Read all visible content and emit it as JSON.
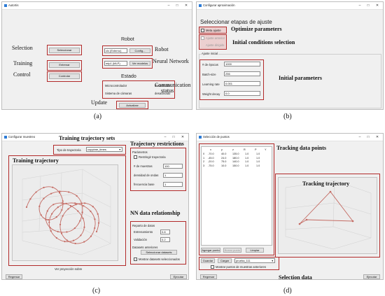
{
  "panel_a": {
    "title": "AutoXis",
    "robot_header": "Robot",
    "estado_header": "Estado",
    "seleccionar": "Seleccionar",
    "entrenar": "Entrenar",
    "controlar": "Controlar",
    "robot_value": "clx (Externo)",
    "config": "Config...",
    "model_value": "mlp1 (MLP)",
    "ver_modelos": "Ver modelos",
    "status_rows": [
      {
        "label": "Microcontrolador",
        "value": "desactivado"
      },
      {
        "label": "Sistema de cámaras",
        "value": "desactivado"
      }
    ],
    "actualizar": "Actualizar",
    "ann": {
      "selection": "Selection",
      "training": "Training",
      "control": "Control",
      "robot": "Robot",
      "neural": "Neural Network",
      "comm1": "Communication",
      "comm2": "status",
      "update": "Update"
    },
    "caption": "(a)"
  },
  "panel_b": {
    "title": "Configurar aproximación",
    "header": "Seleccionar etapas de ajuste",
    "check1": "Meta ajuste",
    "check2": "Ajuste anterior",
    "check3": "Ajuste dirigido",
    "group_title": "Ajuste inicial",
    "params": [
      {
        "label": "# de épocas",
        "value": "1000"
      },
      {
        "label": "Batch-size",
        "value": "256"
      },
      {
        "label": "Learning rate",
        "value": "0.001"
      },
      {
        "label": "Weight decay",
        "value": "0.0"
      }
    ],
    "ann": {
      "opt": "Optimize parameters",
      "init": "Initial conditions selection",
      "params": "Initial parameters"
    },
    "caption": "(b)"
  },
  "panel_c": {
    "title": "Configurar muestreo",
    "tipo_label": "Tipo de trayectoria",
    "tipo_value": "coppime_times",
    "parametros": "Parámetros",
    "restringir": "Restringir trayectoria",
    "fields": [
      {
        "label": "# de muestras",
        "value": "100"
      },
      {
        "label": "densidad de ondas",
        "value": "1"
      },
      {
        "label": "frecuencia base",
        "value": "1"
      }
    ],
    "reparto": "Reparto de datos",
    "entrenamiento": "Entrenamiento",
    "entrenamiento_val": "0.8",
    "validacion": "Validación",
    "validacion_val": "0.2",
    "datasets": "Datasets anteriores",
    "sel_datasets": "Seleccionar datasets",
    "mostrar": "Mostrar datasets seleccionados",
    "ver_proyeccion": "Ver proyección sobre",
    "regresar": "Regresar",
    "ejecutar": "Ejecutar",
    "ann": {
      "sets": "Training trajectory sets",
      "traj": "Training trajectory",
      "restr": "Trajectory restrictions",
      "nn": "NN data relationship"
    },
    "caption": "(c)"
  },
  "panel_d": {
    "title": "Selección de puntos",
    "columns": [
      "x",
      "y",
      "z",
      "R",
      "P",
      "Y"
    ],
    "rows": [
      [
        "0",
        "-70.0",
        "40.0",
        "135.0",
        "1.0",
        "1.0"
      ],
      [
        "1",
        "-45.0",
        "24.0",
        "180.0",
        "1.0",
        "1.0"
      ],
      [
        "2",
        "-20.0",
        "75.0",
        "140.0",
        "1.0",
        "1.0"
      ],
      [
        "3",
        "-75.0",
        "10.0",
        "150.0",
        "1.0",
        "1.0"
      ]
    ],
    "agregar": "Agregar punto",
    "borrar": "Borrar punto",
    "limpiar": "Limpiar",
    "guardar": "Guardar",
    "cargar": "Cargar",
    "file_value": "prueba_111",
    "mostrar": "Mostrar puntos de muestras anteriores",
    "regresar": "Regresar",
    "ejecutar": "Ejecutar",
    "ann": {
      "points": "Tracking data points",
      "traj": "Tracking trajectory",
      "sel": "Selection data"
    },
    "caption": "(d)"
  }
}
